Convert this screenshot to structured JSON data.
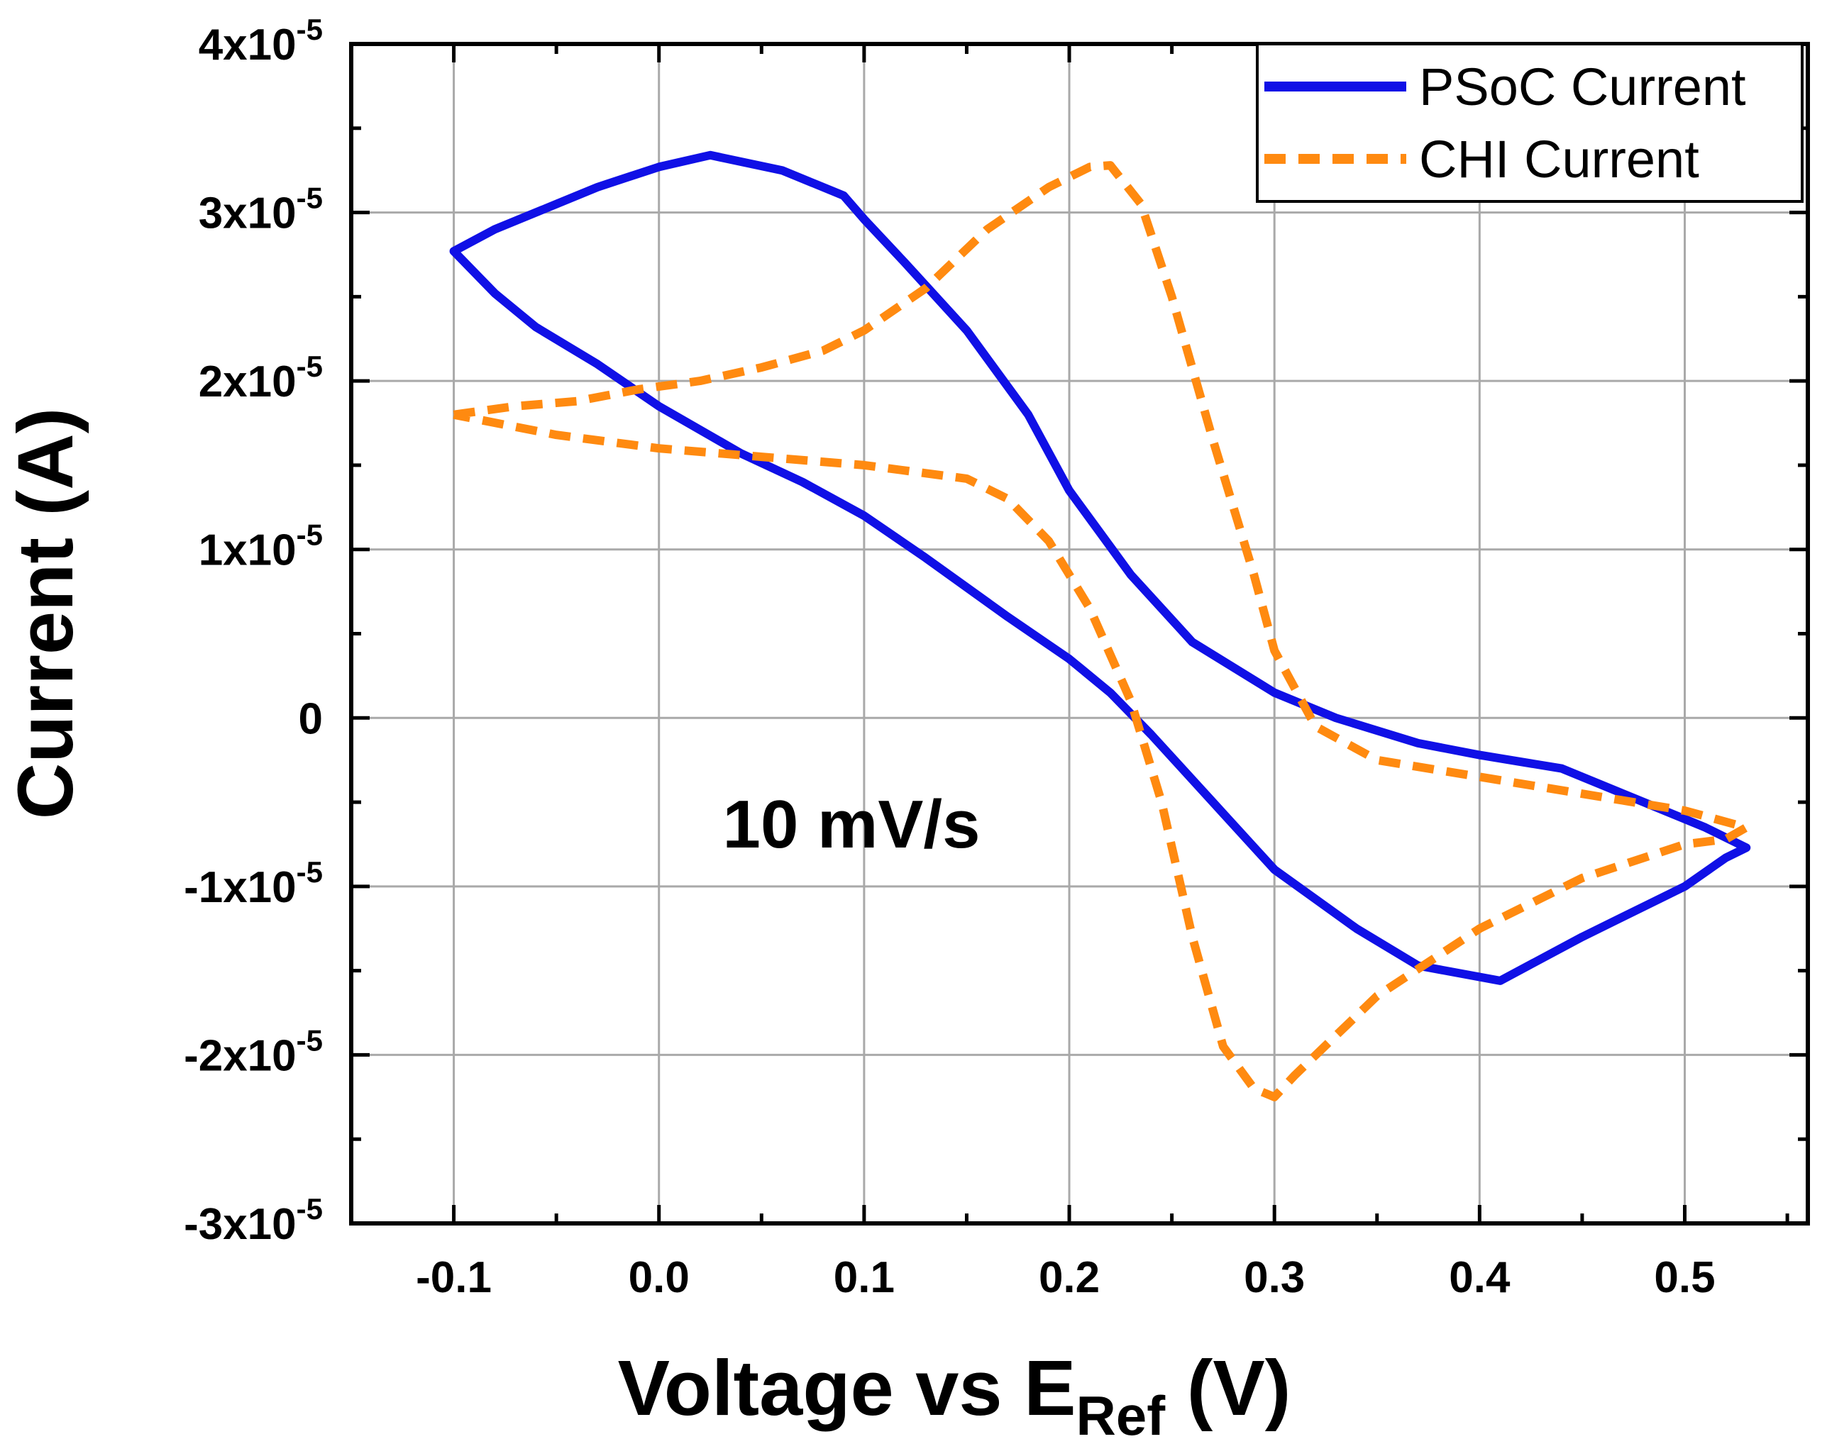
{
  "chart_data": {
    "type": "line",
    "title": "",
    "xlabel": "Voltage vs E",
    "xlabel_subscript": "Ref",
    "xlabel_suffix": " (V)",
    "ylabel": "Current (A)",
    "xlim": [
      -0.15,
      0.56
    ],
    "ylim": [
      -3e-05,
      4e-05
    ],
    "x_ticks": [
      -0.1,
      0.0,
      0.1,
      0.2,
      0.3,
      0.4,
      0.5
    ],
    "x_tick_labels": [
      "-0.1",
      "0.0",
      "0.1",
      "0.2",
      "0.3",
      "0.4",
      "0.5"
    ],
    "y_ticks": [
      -3e-05,
      -2e-05,
      -1e-05,
      0,
      1e-05,
      2e-05,
      3e-05,
      4e-05
    ],
    "y_tick_labels": [
      {
        "base": "-3x10",
        "exp": "-5"
      },
      {
        "base": "-2x10",
        "exp": "-5"
      },
      {
        "base": "-1x10",
        "exp": "-5"
      },
      {
        "base": "0",
        "exp": ""
      },
      {
        "base": "1x10",
        "exp": "-5"
      },
      {
        "base": "2x10",
        "exp": "-5"
      },
      {
        "base": "3x10",
        "exp": "-5"
      },
      {
        "base": "4x10",
        "exp": "-5"
      }
    ],
    "grid": true,
    "legend_position": "top-right",
    "annotation": "10 mV/s",
    "series": [
      {
        "name": "PSoC Current",
        "color": "#1010e6",
        "style": "solid",
        "x": [
          -0.1,
          -0.08,
          -0.05,
          -0.03,
          0.0,
          0.025,
          0.06,
          0.09,
          0.1,
          0.12,
          0.15,
          0.18,
          0.2,
          0.23,
          0.26,
          0.3,
          0.33,
          0.37,
          0.4,
          0.44,
          0.48,
          0.51,
          0.53,
          0.52,
          0.5,
          0.45,
          0.41,
          0.37,
          0.34,
          0.3,
          0.27,
          0.24,
          0.22,
          0.2,
          0.17,
          0.13,
          0.1,
          0.07,
          0.04,
          0.0,
          -0.03,
          -0.06,
          -0.08,
          -0.1
        ],
        "y": [
          2.77e-05,
          2.9e-05,
          3.05e-05,
          3.15e-05,
          3.27e-05,
          3.34e-05,
          3.25e-05,
          3.1e-05,
          2.96e-05,
          2.7e-05,
          2.3e-05,
          1.8e-05,
          1.35e-05,
          8.5e-06,
          4.5e-06,
          1.5e-06,
          0.0,
          -1.5e-06,
          -2.2e-06,
          -3e-06,
          -5e-06,
          -6.5e-06,
          -7.7e-06,
          -8.3e-06,
          -1e-05,
          -1.3e-05,
          -1.56e-05,
          -1.47e-05,
          -1.25e-05,
          -9e-06,
          -5e-06,
          -1e-06,
          1.5e-06,
          3.5e-06,
          6e-06,
          9.5e-06,
          1.2e-05,
          1.4e-05,
          1.57e-05,
          1.85e-05,
          2.1e-05,
          2.32e-05,
          2.52e-05,
          2.77e-05
        ]
      },
      {
        "name": "CHI Current",
        "color": "#ff8a10",
        "style": "dashed",
        "x": [
          -0.1,
          -0.07,
          -0.04,
          -0.01,
          0.02,
          0.05,
          0.08,
          0.1,
          0.13,
          0.16,
          0.19,
          0.21,
          0.22,
          0.235,
          0.25,
          0.27,
          0.29,
          0.3,
          0.32,
          0.35,
          0.4,
          0.45,
          0.5,
          0.53,
          0.52,
          0.5,
          0.45,
          0.4,
          0.35,
          0.31,
          0.3,
          0.29,
          0.275,
          0.26,
          0.245,
          0.23,
          0.21,
          0.19,
          0.17,
          0.15,
          0.1,
          0.05,
          0.0,
          -0.05,
          -0.1
        ],
        "y": [
          1.8e-05,
          1.85e-05,
          1.88e-05,
          1.95e-05,
          2e-05,
          2.08e-05,
          2.18e-05,
          2.3e-05,
          2.55e-05,
          2.9e-05,
          3.15e-05,
          3.27e-05,
          3.28e-05,
          3.05e-05,
          2.5e-05,
          1.65e-05,
          8.5e-06,
          4e-06,
          -5e-07,
          -2.5e-06,
          -3.5e-06,
          -4.5e-06,
          -5.5e-06,
          -6.5e-06,
          -7.2e-06,
          -7.5e-06,
          -9.5e-06,
          -1.25e-05,
          -1.65e-05,
          -2.12e-05,
          -2.25e-05,
          -2.2e-05,
          -1.95e-05,
          -1.3e-05,
          -5e-06,
          1e-06,
          6.5e-06,
          1.05e-05,
          1.3e-05,
          1.42e-05,
          1.5e-05,
          1.55e-05,
          1.6e-05,
          1.68e-05,
          1.8e-05
        ]
      }
    ]
  }
}
